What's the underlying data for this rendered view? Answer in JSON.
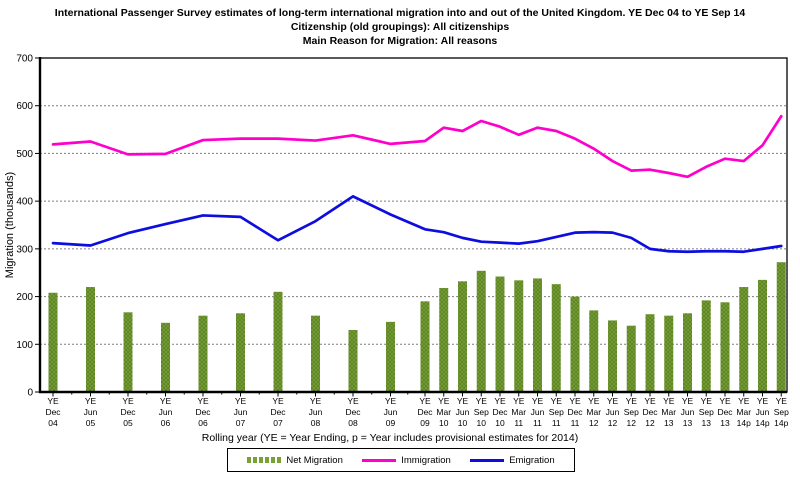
{
  "title": {
    "line1": "International Passenger Survey estimates of long-term international migration into and out of the United Kingdom.  YE Dec 04 to YE Sep 14",
    "line2": "Citizenship (old groupings): All citizenships",
    "line3": "Main Reason for Migration: All reasons"
  },
  "chart_data": {
    "type": "bar",
    "subtype": "bar-and-line-combo",
    "title": "International Passenger Survey estimates of long-term international migration into and out of the United Kingdom. YE Dec 04 to YE Sep 14",
    "categories": [
      "YE Dec 04",
      "YE Jun 05",
      "YE Dec 05",
      "YE Jun 06",
      "YE Dec 06",
      "YE Jun 07",
      "YE Dec 07",
      "YE Jun 08",
      "YE Dec 08",
      "YE Jun 09",
      "YE Dec 09",
      "YE Mar 10",
      "YE Jun 10",
      "YE Sep 10",
      "YE Dec 10",
      "YE Mar 11",
      "YE Jun 11",
      "YE Sep 11",
      "YE Dec 11",
      "YE Mar 12",
      "YE Jun 12",
      "YE Sep 12",
      "YE Dec 12",
      "YE Mar 13",
      "YE Jun 13",
      "YE Sep 13",
      "YE Dec 13",
      "YE Mar 14p",
      "YE Jun 14p",
      "YE Sep 14p"
    ],
    "series": [
      {
        "name": "Net Migration",
        "type": "bar",
        "color": "#79A236",
        "values": [
          208,
          220,
          167,
          145,
          160,
          165,
          210,
          160,
          130,
          147,
          190,
          218,
          232,
          254,
          242,
          234,
          238,
          226,
          200,
          171,
          150,
          139,
          163,
          160,
          165,
          192,
          188,
          220,
          235,
          272
        ]
      },
      {
        "name": "Immigration",
        "type": "line",
        "color": "#FF00CC",
        "values": [
          519,
          525,
          498,
          499,
          528,
          531,
          531,
          527,
          538,
          520,
          526,
          554,
          547,
          568,
          556,
          539,
          554,
          547,
          531,
          510,
          484,
          464,
          466,
          459,
          451,
          472,
          489,
          484,
          517,
          578
        ]
      },
      {
        "name": "Emigration",
        "type": "line",
        "color": "#0D0DE0",
        "values": [
          312,
          307,
          333,
          352,
          370,
          367,
          318,
          358,
          410,
          372,
          341,
          335,
          323,
          315,
          313,
          311,
          316,
          325,
          334,
          335,
          334,
          323,
          300,
          295,
          294,
          295,
          295,
          294,
          300,
          306
        ]
      }
    ],
    "xlabel": "Rolling year (YE = Year Ending, p = Year includes provisional estimates for 2014)",
    "ylabel": "Migration (thousands)",
    "ylim": [
      0,
      700
    ],
    "y_ticks": [
      0,
      100,
      200,
      300,
      400,
      500,
      600,
      700
    ],
    "grid": "horizontal-dotted",
    "legend_position": "bottom",
    "x_axis_note": "semi-annual points YE Dec 04 - YE Jun 09, quarterly points YE Dec 09 - YE Sep 14p"
  }
}
